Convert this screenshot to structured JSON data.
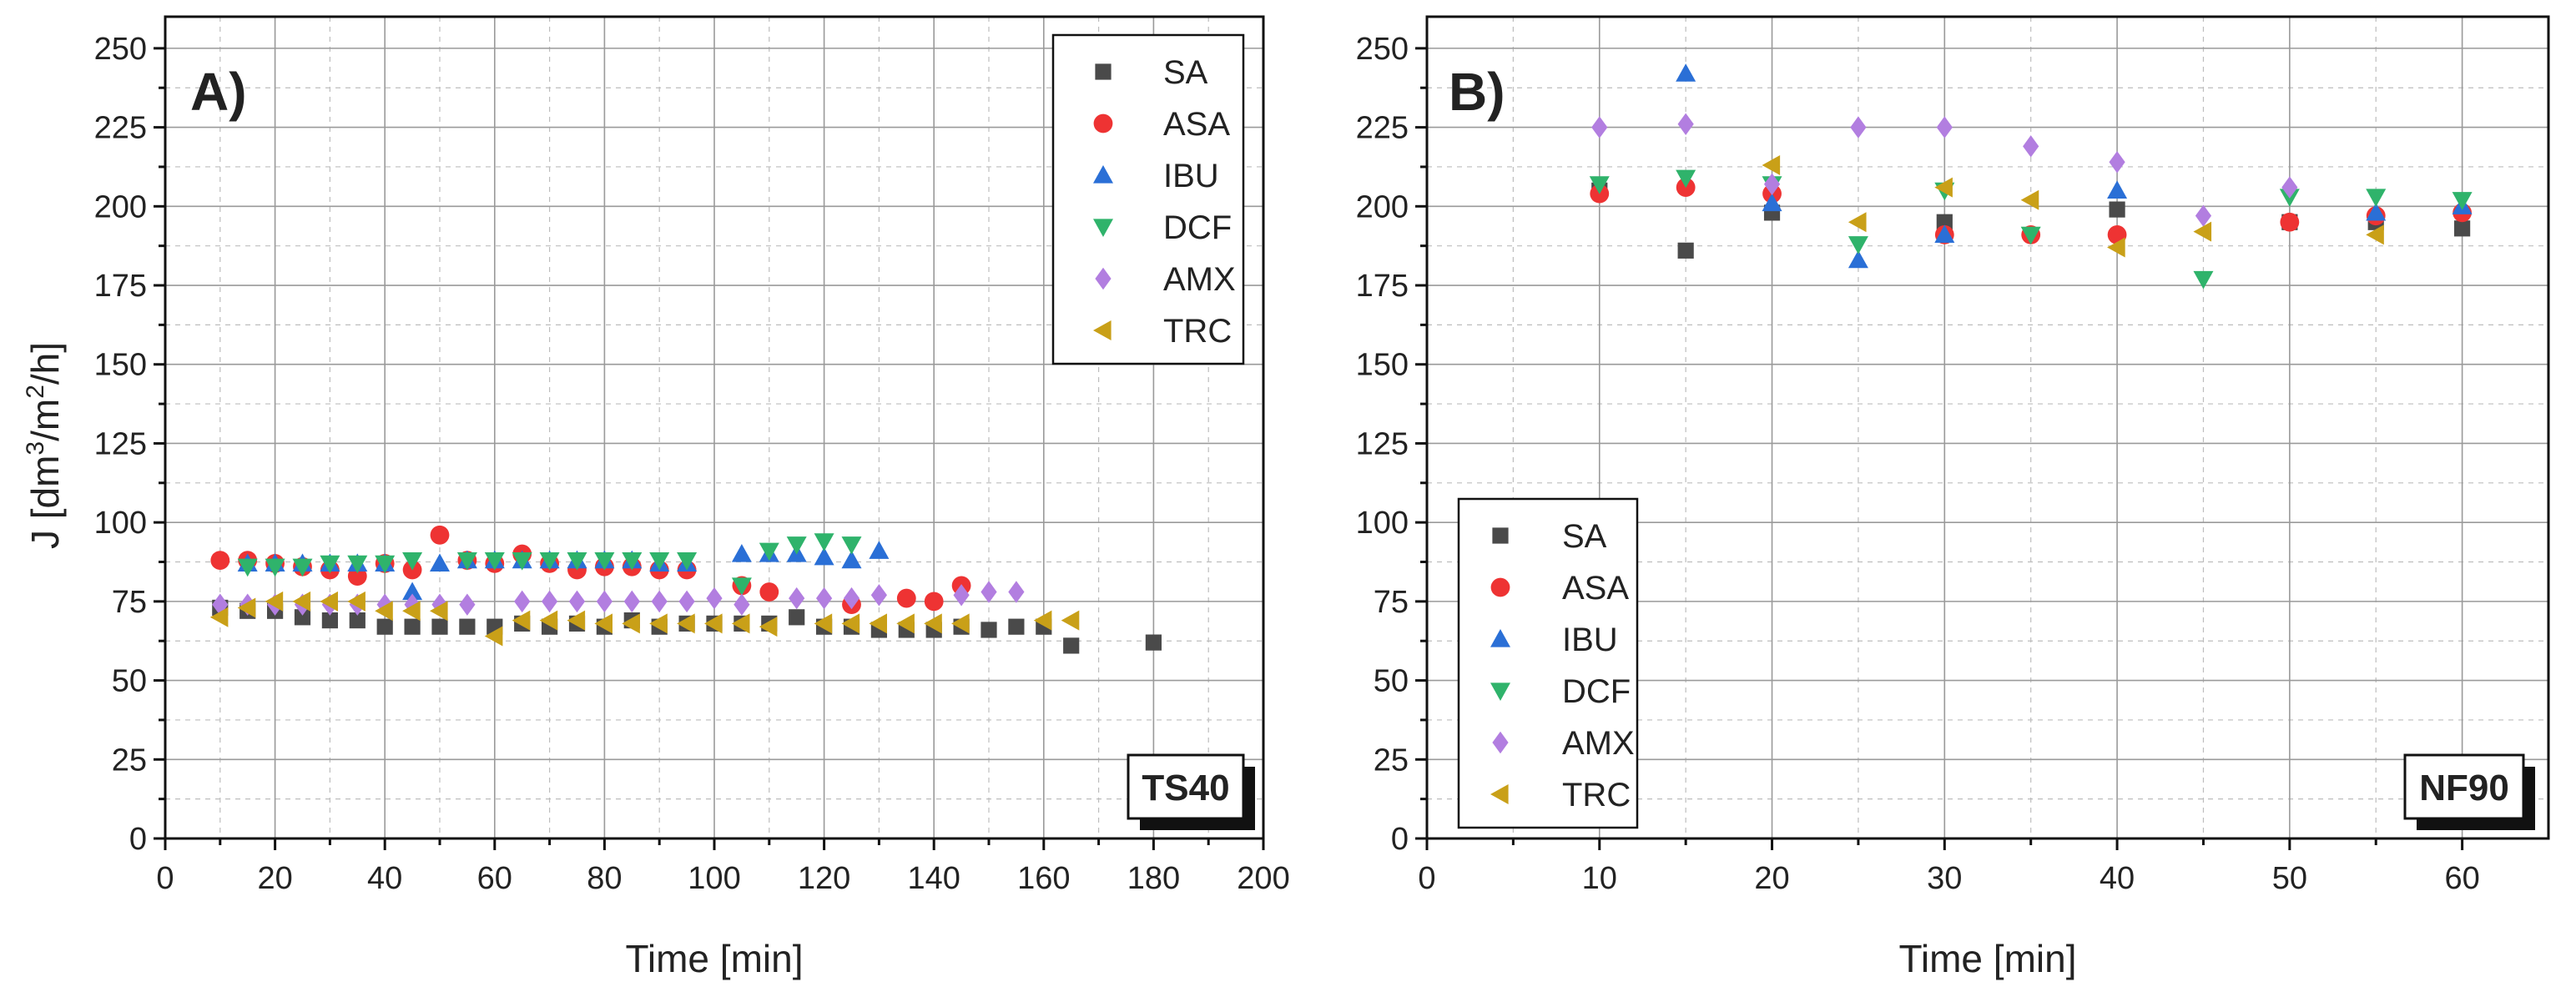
{
  "figure": {
    "ylabel_main": "J [dm",
    "ylabel_sup1": "3",
    "ylabel_mid": "/m",
    "ylabel_sup2": "2",
    "ylabel_end": "/h]"
  },
  "series_colors": {
    "SA": "#4a4a4a",
    "ASA": "#ee3333",
    "IBU": "#2a6fd6",
    "DCF": "#2fb36b",
    "AMX": "#b27ee0",
    "TRC": "#c9a018"
  },
  "series_markers": {
    "SA": "square",
    "ASA": "circle",
    "IBU": "triangle-up",
    "DCF": "triangle-down",
    "AMX": "diamond",
    "TRC": "triangle-left"
  },
  "chart_data": [
    {
      "type": "scatter",
      "panel": "A)",
      "membrane": "TS40",
      "title": "",
      "xlabel": "Time [min]",
      "ylabel": "J [dm3/m2/h]",
      "xlim": [
        0,
        200
      ],
      "ylim": [
        0,
        260
      ],
      "xticks": [
        0,
        20,
        40,
        60,
        80,
        100,
        120,
        140,
        160,
        180,
        200
      ],
      "yticks": [
        0,
        25,
        50,
        75,
        100,
        125,
        150,
        175,
        200,
        225,
        250
      ],
      "legend_position": "top-right",
      "series": [
        {
          "name": "SA",
          "x": [
            10,
            15,
            20,
            25,
            30,
            35,
            40,
            45,
            50,
            55,
            60,
            65,
            70,
            75,
            80,
            85,
            90,
            95,
            100,
            105,
            110,
            115,
            120,
            125,
            130,
            135,
            140,
            145,
            150,
            155,
            160,
            165,
            180
          ],
          "y": [
            73,
            72,
            72,
            70,
            69,
            69,
            67,
            67,
            67,
            67,
            67,
            68,
            67,
            68,
            67,
            69,
            67,
            68,
            68,
            68,
            68,
            70,
            67,
            67,
            66,
            66,
            66,
            67,
            66,
            67,
            67,
            61,
            62
          ]
        },
        {
          "name": "ASA",
          "x": [
            10,
            15,
            20,
            25,
            30,
            35,
            40,
            45,
            50,
            55,
            60,
            65,
            70,
            75,
            80,
            85,
            90,
            95,
            105,
            110,
            125,
            135,
            140,
            145
          ],
          "y": [
            88,
            88,
            87,
            86,
            85,
            83,
            87,
            85,
            96,
            88,
            87,
            90,
            87,
            85,
            86,
            86,
            85,
            85,
            80,
            78,
            74,
            76,
            75,
            80
          ]
        },
        {
          "name": "IBU",
          "x": [
            15,
            20,
            25,
            30,
            35,
            40,
            45,
            50,
            55,
            60,
            65,
            70,
            75,
            80,
            85,
            90,
            95,
            105,
            110,
            115,
            120,
            125,
            130
          ],
          "y": [
            87,
            87,
            87,
            87,
            87,
            87,
            78,
            87,
            88,
            88,
            88,
            88,
            88,
            88,
            88,
            87,
            87,
            90,
            90,
            90,
            89,
            88,
            91
          ]
        },
        {
          "name": "DCF",
          "x": [
            15,
            20,
            25,
            30,
            35,
            40,
            45,
            55,
            60,
            65,
            70,
            75,
            80,
            85,
            90,
            95,
            105,
            110,
            115,
            120,
            125
          ],
          "y": [
            86,
            86,
            86,
            87,
            87,
            87,
            88,
            88,
            88,
            88,
            88,
            88,
            88,
            88,
            88,
            88,
            80,
            91,
            93,
            94,
            93
          ]
        },
        {
          "name": "AMX",
          "x": [
            10,
            15,
            20,
            25,
            30,
            35,
            40,
            45,
            50,
            55,
            65,
            70,
            75,
            80,
            85,
            90,
            95,
            100,
            105,
            115,
            120,
            125,
            130,
            145,
            150,
            155
          ],
          "y": [
            74,
            74,
            74,
            74,
            74,
            74,
            74,
            74,
            74,
            74,
            75,
            75,
            75,
            75,
            75,
            75,
            75,
            76,
            74,
            76,
            76,
            76,
            77,
            77,
            78,
            78
          ]
        },
        {
          "name": "TRC",
          "x": [
            10,
            15,
            20,
            25,
            30,
            35,
            40,
            45,
            50,
            60,
            65,
            70,
            75,
            80,
            85,
            90,
            95,
            100,
            105,
            110,
            120,
            125,
            130,
            135,
            140,
            145,
            160,
            165
          ],
          "y": [
            70,
            73,
            75,
            75,
            75,
            75,
            72,
            72,
            72,
            64,
            69,
            69,
            69,
            68,
            68,
            68,
            68,
            68,
            68,
            67,
            68,
            68,
            68,
            68,
            68,
            68,
            69,
            69
          ]
        }
      ]
    },
    {
      "type": "scatter",
      "panel": "B)",
      "membrane": "NF90",
      "title": "",
      "xlabel": "Time [min]",
      "ylabel": "",
      "xlim": [
        0,
        65
      ],
      "ylim": [
        0,
        260
      ],
      "xticks": [
        0,
        10,
        20,
        30,
        40,
        50,
        60
      ],
      "yticks": [
        0,
        25,
        50,
        75,
        100,
        125,
        150,
        175,
        200,
        225,
        250
      ],
      "legend_position": "bottom-left",
      "series": [
        {
          "name": "SA",
          "x": [
            10,
            15,
            20,
            30,
            40,
            50,
            55,
            60
          ],
          "y": [
            205,
            186,
            198,
            195,
            199,
            195,
            195,
            193
          ]
        },
        {
          "name": "ASA",
          "x": [
            10,
            15,
            20,
            30,
            35,
            40,
            50,
            55,
            60
          ],
          "y": [
            204,
            206,
            204,
            191,
            191,
            191,
            195,
            197,
            198
          ]
        },
        {
          "name": "IBU",
          "x": [
            15,
            20,
            25,
            30,
            40,
            55,
            60
          ],
          "y": [
            242,
            201,
            183,
            191,
            205,
            198,
            200
          ]
        },
        {
          "name": "DCF",
          "x": [
            10,
            15,
            20,
            25,
            30,
            35,
            45,
            50,
            55,
            60
          ],
          "y": [
            207,
            209,
            207,
            188,
            205,
            191,
            177,
            203,
            203,
            202
          ]
        },
        {
          "name": "AMX",
          "x": [
            10,
            15,
            20,
            25,
            30,
            35,
            40,
            45,
            50
          ],
          "y": [
            225,
            226,
            207,
            225,
            225,
            219,
            214,
            197,
            206
          ]
        },
        {
          "name": "TRC",
          "x": [
            20,
            25,
            30,
            35,
            40,
            45,
            55
          ],
          "y": [
            213,
            195,
            206,
            202,
            187,
            192,
            191
          ]
        }
      ]
    }
  ]
}
